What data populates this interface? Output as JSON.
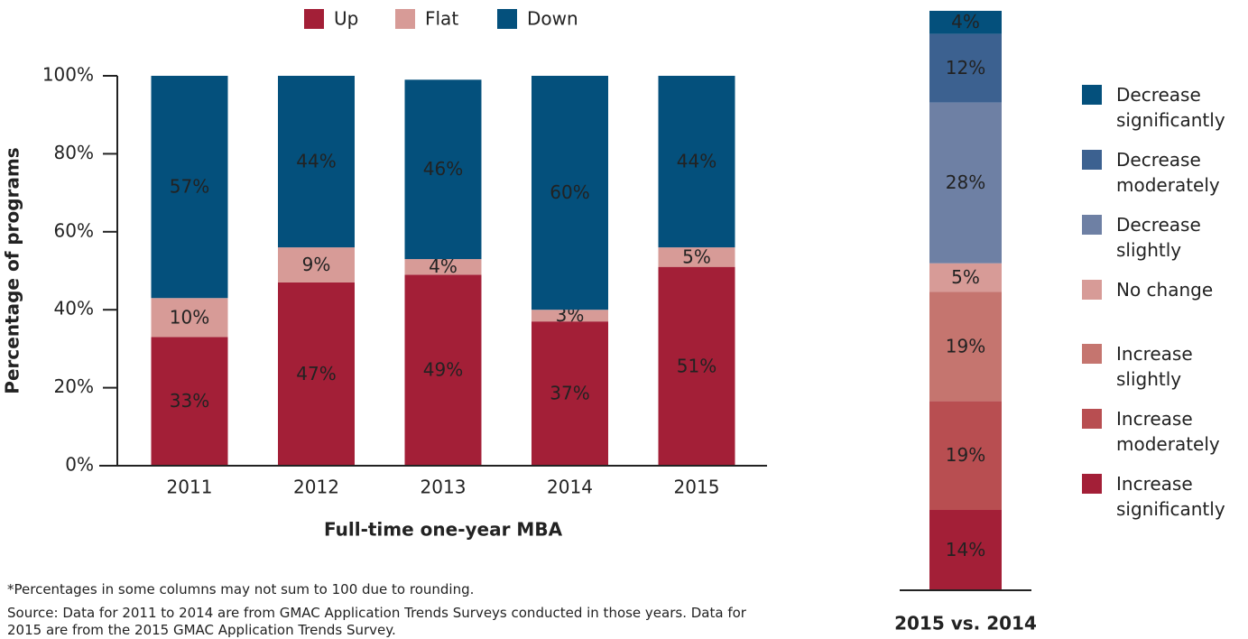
{
  "chart_data": [
    {
      "type": "bar",
      "stacked": true,
      "xlabel": "Full-time one-year MBA",
      "ylabel": "Percentage of programs",
      "categories": [
        "2011",
        "2012",
        "2013",
        "2014",
        "2015"
      ],
      "series": [
        {
          "name": "Up",
          "color": "#a31f37",
          "values": [
            33,
            47,
            49,
            37,
            51
          ],
          "value_labels": [
            "33%",
            "47%",
            "49%",
            "37%",
            "51%"
          ]
        },
        {
          "name": "Flat",
          "color": "#d79b97",
          "values": [
            10,
            9,
            4,
            3,
            5
          ],
          "value_labels": [
            "10%",
            "9%",
            "4%",
            "3%",
            "5%"
          ]
        },
        {
          "name": "Down",
          "color": "#04507c",
          "values": [
            57,
            44,
            46,
            60,
            44
          ],
          "value_labels": [
            "57%",
            "44%",
            "46%",
            "60%",
            "44%"
          ]
        }
      ],
      "ylim": [
        0,
        100
      ],
      "yticks": [
        {
          "value": 0,
          "label": "0%"
        },
        {
          "value": 20,
          "label": "20%"
        },
        {
          "value": 40,
          "label": "40%"
        },
        {
          "value": 60,
          "label": "60%"
        },
        {
          "value": 80,
          "label": "80%"
        },
        {
          "value": 100,
          "label": "100%"
        }
      ],
      "legend": "top"
    },
    {
      "type": "bar",
      "stacked": true,
      "categories": [
        "2015 vs. 2014"
      ],
      "series": [
        {
          "name": "Increase significantly",
          "color": "#a31f37",
          "values": [
            14
          ],
          "value_labels": [
            "14%"
          ]
        },
        {
          "name": "Increase moderately",
          "color": "#b84e51",
          "values": [
            19
          ],
          "value_labels": [
            "19%"
          ]
        },
        {
          "name": "Increase slightly",
          "color": "#c5756f",
          "values": [
            19
          ],
          "value_labels": [
            "19%"
          ]
        },
        {
          "name": "No change",
          "color": "#d79b97",
          "values": [
            5
          ],
          "value_labels": [
            "5%"
          ]
        },
        {
          "name": "Decrease slightly",
          "color": "#6e80a4",
          "values": [
            28
          ],
          "value_labels": [
            "28%"
          ]
        },
        {
          "name": "Decrease moderately",
          "color": "#3c6190",
          "values": [
            12
          ],
          "value_labels": [
            "12%"
          ]
        },
        {
          "name": "Decrease significantly",
          "color": "#04507c",
          "values": [
            4
          ],
          "value_labels": [
            "4%"
          ]
        }
      ],
      "ylim": [
        0,
        101
      ],
      "legend": "right"
    }
  ],
  "notes": {
    "footnote": "*Percentages in some columns may not sum to 100 due to rounding.",
    "source": "Source: Data for 2011 to 2014 are from GMAC Application Trends Surveys conducted in those years. Data for 2015 are from the 2015 GMAC Application Trends Survey."
  }
}
